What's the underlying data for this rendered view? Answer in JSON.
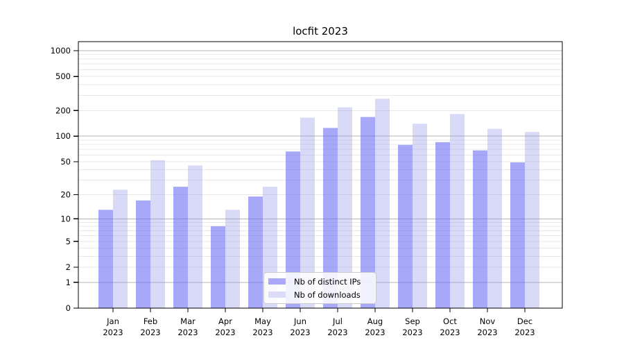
{
  "figure": {
    "title": "locfit 2023"
  },
  "chart_data": {
    "type": "bar",
    "title": "locfit 2023",
    "categories": [
      "Jan 2023",
      "Feb 2023",
      "Mar 2023",
      "Apr 2023",
      "May 2023",
      "Jun 2023",
      "Jul 2023",
      "Aug 2023",
      "Sep 2023",
      "Oct 2023",
      "Nov 2023",
      "Dec 2023"
    ],
    "series": [
      {
        "name": "Nb of distinct IPs",
        "color": "#a9a9f8",
        "fill": "rgba(97,97,242,0.55)",
        "values": [
          13,
          17,
          25,
          8,
          19,
          66,
          125,
          168,
          79,
          85,
          68,
          49
        ]
      },
      {
        "name": "Nb of downloads",
        "color": "#dcdcf8",
        "fill": "rgba(138,138,232,0.32)",
        "values": [
          23,
          52,
          45,
          13,
          25,
          165,
          218,
          275,
          140,
          182,
          122,
          112
        ]
      }
    ],
    "xlabel": "",
    "ylabel": "",
    "yscale": "log1p",
    "y_ticks": [
      0,
      1,
      2,
      5,
      10,
      20,
      50,
      100,
      200,
      500,
      1000
    ],
    "ylim": [
      0,
      1276
    ],
    "grid": "horizontal major and minor",
    "legend_position": "inside lower center"
  },
  "colors": {
    "grid_major": "#b5b5b5",
    "grid_minor": "#e8e8e8",
    "axis": "#000000",
    "text": "#000000",
    "background": "#ffffff",
    "legend_border": "#c9c9c9"
  }
}
